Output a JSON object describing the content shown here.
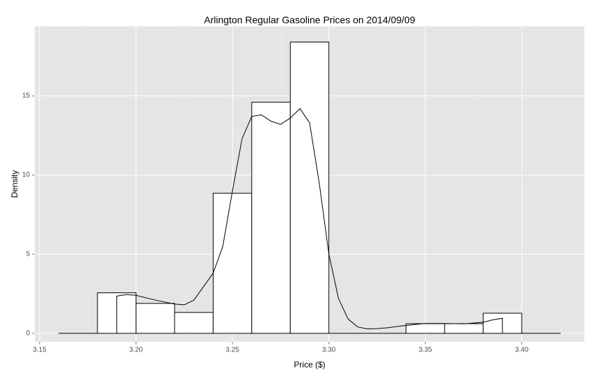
{
  "chart_data": {
    "type": "histogram",
    "title": "Arlington Regular Gasoline Prices on 2014/09/09",
    "x_label": "Price ($)",
    "y_label": "Density",
    "bins": [
      3.16,
      3.18,
      3.2,
      3.22,
      3.24,
      3.26,
      3.28,
      3.3,
      3.32,
      3.34,
      3.36,
      3.38,
      3.4,
      3.42
    ],
    "values": [
      0,
      2.56,
      1.89,
      1.32,
      8.85,
      14.6,
      18.4,
      0,
      0,
      0.61,
      0.61,
      1.27,
      0
    ],
    "bar_fill": "#ffffff",
    "bar_stroke": "#000000",
    "density": {
      "color": "#000000",
      "x": [
        3.19,
        3.195,
        3.2,
        3.21,
        3.22,
        3.225,
        3.23,
        3.24,
        3.245,
        3.25,
        3.255,
        3.26,
        3.265,
        3.27,
        3.275,
        3.28,
        3.285,
        3.29,
        3.295,
        3.3,
        3.305,
        3.31,
        3.315,
        3.32,
        3.325,
        3.33,
        3.34,
        3.35,
        3.36,
        3.37,
        3.38,
        3.385,
        3.39
      ],
      "values": [
        2.35,
        2.45,
        2.4,
        2.1,
        1.85,
        1.8,
        2.1,
        3.8,
        5.5,
        9.0,
        12.3,
        13.7,
        13.8,
        13.4,
        13.2,
        13.6,
        14.2,
        13.3,
        9.5,
        5.0,
        2.2,
        0.9,
        0.4,
        0.28,
        0.3,
        0.35,
        0.5,
        0.62,
        0.62,
        0.6,
        0.7,
        0.85,
        0.95
      ]
    },
    "xlim": [
      3.1475,
      3.4325
    ],
    "ylim": [
      -0.53,
      19.39
    ],
    "xticks": [
      3.15,
      {
        "value": 3.2,
        "label": "3.20"
      },
      3.25,
      {
        "value": 3.3,
        "label": "3.30"
      },
      3.35,
      {
        "value": 3.4,
        "label": "3.40"
      }
    ],
    "yticks": [
      0,
      5,
      10,
      15
    ],
    "grid": true
  }
}
